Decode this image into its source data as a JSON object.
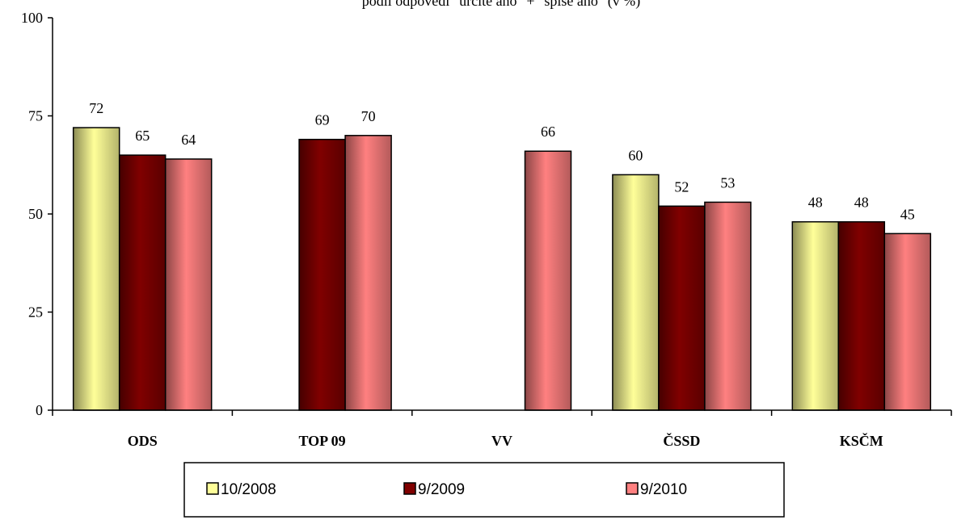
{
  "chart_data": {
    "type": "bar",
    "title": "podíl odpovědí \"určitě ano\" + \"spíše ano\" (v %)",
    "categories": [
      "ODS",
      "TOP 09",
      "VV",
      "ČSSD",
      "KSČM"
    ],
    "series": [
      {
        "name": "10/2008",
        "color": "#ffff99",
        "values": [
          72,
          null,
          null,
          60,
          48
        ]
      },
      {
        "name": "9/2009",
        "color": "#800000",
        "values": [
          65,
          69,
          null,
          52,
          48
        ]
      },
      {
        "name": "9/2010",
        "color": "#ff8080",
        "values": [
          64,
          70,
          66,
          53,
          45
        ]
      }
    ],
    "ylim": [
      0,
      100
    ],
    "yticks": [
      0,
      25,
      50,
      75,
      100
    ],
    "legend": "bottom"
  }
}
